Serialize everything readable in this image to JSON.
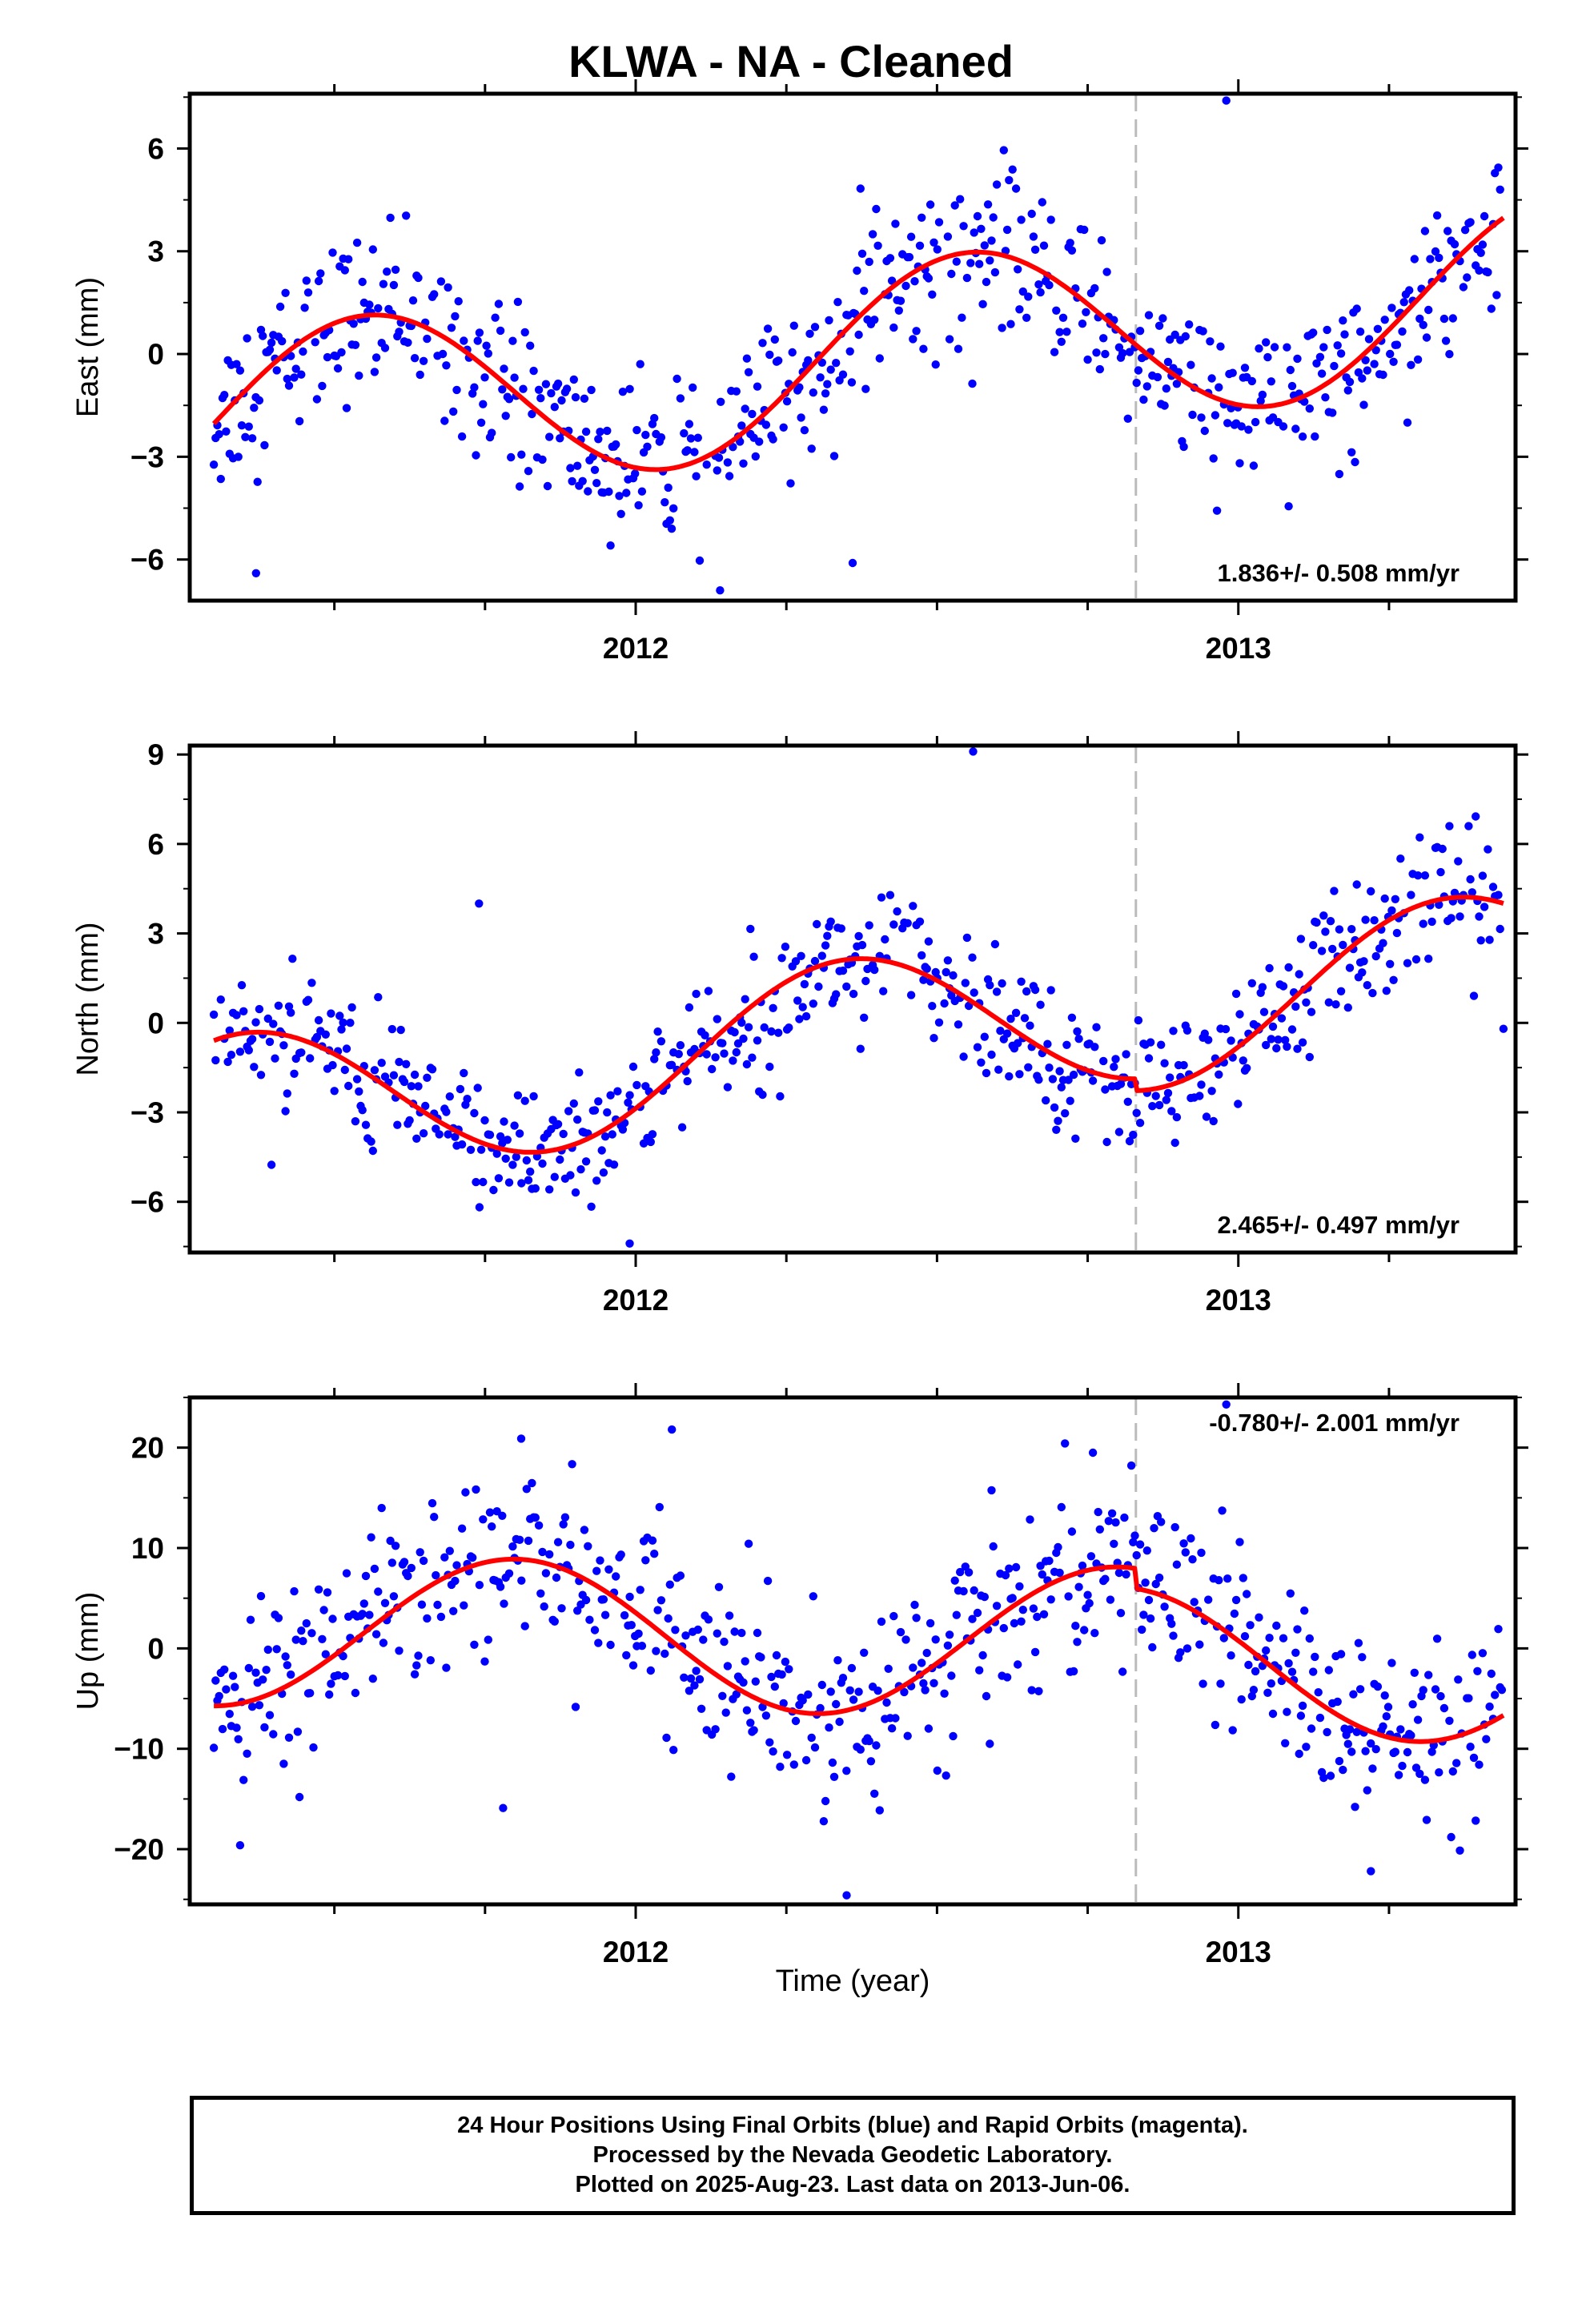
{
  "title": "KLWA  - NA - Cleaned",
  "footer": {
    "lines": [
      "24 Hour Positions Using Final Orbits (blue) and Rapid Orbits (magenta).",
      "Processed by the Nevada Geodetic Laboratory.",
      "Plotted on 2025-Aug-23. Last data on 2013-Jun-06."
    ]
  },
  "colors": {
    "points": "#0000ff",
    "fit": "#ff0000",
    "event_line": "#bbbbbb",
    "frame": "#000000"
  },
  "chart_data": [
    {
      "type": "scatter",
      "ylabel": "East (mm)",
      "x_ticks": [
        "2012",
        "2013"
      ],
      "x_tick_values": [
        2012.0,
        2013.0
      ],
      "xlim": [
        2011.26,
        2013.46
      ],
      "ylim": [
        -7.2,
        7.6
      ],
      "y_ticks": [
        -6,
        -3,
        0,
        3,
        6
      ],
      "y_tick_labels": [
        "−6",
        "−3",
        "0",
        "3",
        "6"
      ],
      "rate_label": "1.836+/- 0.508 mm/yr",
      "rate_position": "bottom-right",
      "event_line_x": 2012.83,
      "fit": {
        "trend": 1.836,
        "offset": -0.2,
        "amp": 2.7,
        "period": 1.0,
        "phase": 0.3,
        "jump": 0.0
      },
      "noise": 1.15,
      "outliers": [
        [
          2012.98,
          7.4
        ],
        [
          2012.14,
          -6.9
        ],
        [
          2011.37,
          -6.4
        ],
        [
          2012.36,
          -6.1
        ]
      ]
    },
    {
      "type": "scatter",
      "ylabel": "North (mm)",
      "x_ticks": [
        "2012",
        "2013"
      ],
      "x_tick_values": [
        2012.0,
        2013.0
      ],
      "xlim": [
        2011.26,
        2013.46
      ],
      "ylim": [
        -7.7,
        9.3
      ],
      "y_ticks": [
        -6,
        -3,
        0,
        3,
        6,
        9
      ],
      "y_tick_labels": [
        "−6",
        "−3",
        "0",
        "3",
        "6",
        "9"
      ],
      "rate_label": "2.465+/- 0.497 mm/yr",
      "rate_position": "bottom-right",
      "event_line_x": 2012.83,
      "fit": {
        "trend": 2.465,
        "offset": -0.6,
        "amp": 2.6,
        "period": 1.0,
        "phase": 0.1,
        "jump": -0.4
      },
      "noise": 1.1,
      "outliers": [
        [
          2012.56,
          9.1
        ],
        [
          2011.99,
          -7.4
        ],
        [
          2011.74,
          4.0
        ],
        [
          2013.44,
          -0.2
        ]
      ]
    },
    {
      "type": "scatter",
      "ylabel": "Up (mm)",
      "x_ticks": [
        "2012",
        "2013"
      ],
      "x_tick_values": [
        2012.0,
        2013.0
      ],
      "xlim": [
        2011.26,
        2013.46
      ],
      "ylim": [
        -25.5,
        25.0
      ],
      "y_ticks": [
        -20,
        -10,
        0,
        10,
        20
      ],
      "y_tick_labels": [
        "−20",
        "−10",
        "0",
        "10",
        "20"
      ],
      "rate_label": "-0.780+/- 2.001 mm/yr",
      "rate_position": "top-right",
      "event_line_x": 2012.83,
      "fit": {
        "trend": -0.78,
        "offset": 1.0,
        "amp": 7.5,
        "period": 1.0,
        "phase": 0.55,
        "jump": -2.0
      },
      "noise": 4.5,
      "outliers": [
        [
          2012.35,
          -24.6
        ],
        [
          2012.98,
          24.3
        ],
        [
          2012.06,
          21.8
        ],
        [
          2011.81,
          20.9
        ],
        [
          2011.78,
          -15.9
        ],
        [
          2013.22,
          -22.2
        ]
      ]
    }
  ],
  "x_axis_label": "Time (year)"
}
